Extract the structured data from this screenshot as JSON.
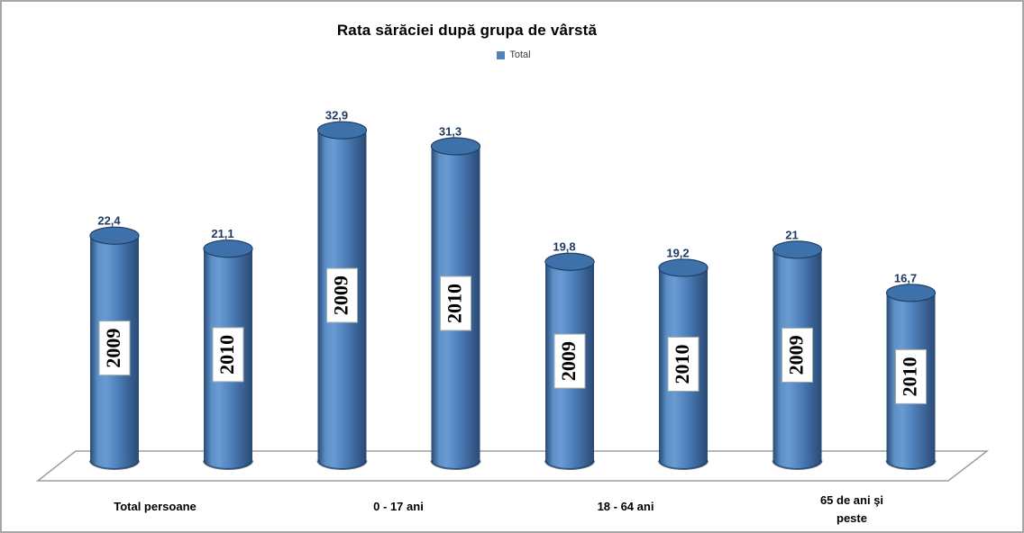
{
  "frame": {
    "background": "#ffffff",
    "border_color": "#a7a7a7"
  },
  "chart_data": {
    "type": "bar",
    "subtype": "3d-cylinder",
    "title": "Rata sărăciei după grupa de vârstă",
    "legend": [
      "Total"
    ],
    "legend_position": "top-center",
    "legend_swatch_color": "#4f81bd",
    "categories": [
      "Total persoane",
      "0 - 17 ani",
      "18 - 64 ani",
      "65 de ani şi peste"
    ],
    "category_label_lines": [
      [
        "Total persoane"
      ],
      [
        "0 - 17 ani"
      ],
      [
        "18 - 64 ani"
      ],
      [
        "65 de ani şi",
        "peste"
      ]
    ],
    "series": [
      {
        "name": "2009",
        "values": [
          22.4,
          32.9,
          19.8,
          21
        ],
        "labels": [
          "22,4",
          "32,9",
          "19,8",
          "21"
        ]
      },
      {
        "name": "2010",
        "values": [
          21.1,
          31.3,
          19.2,
          16.7
        ],
        "labels": [
          "21,1",
          "31,3",
          "19,2",
          "16,7"
        ]
      }
    ],
    "bar_inner_labels": [
      "2009",
      "2010"
    ],
    "ylim": [
      0,
      35
    ],
    "gridlines": false,
    "axes": {
      "y_axis_visible": false,
      "x_axis_labels_visible": true
    },
    "colors": {
      "bar_main": "#4f81bd",
      "bar_highlight": "#6a9bd2",
      "bar_shadow": "#2a4a74",
      "top_ellipse": "#3e70a9",
      "top_ellipse_rim": "#1f4067",
      "bottom_rim": "#16345a",
      "value_label": "#1f3a63",
      "category_label": "#000000",
      "year_box_border": "#a3abab",
      "floor_stroke": "#9d9d9d"
    }
  }
}
